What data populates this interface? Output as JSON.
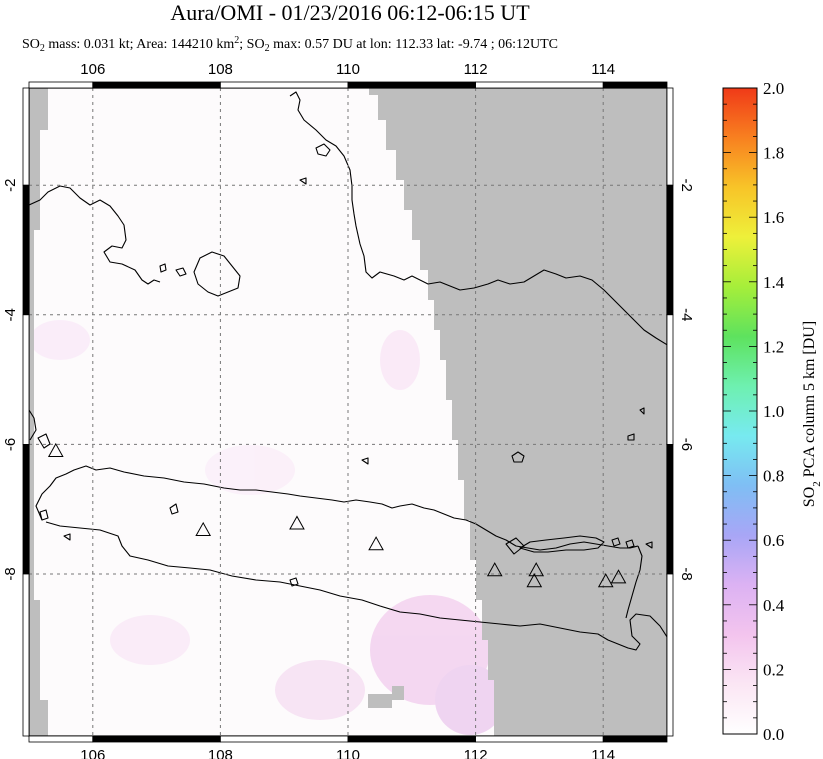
{
  "title": "Aura/OMI - 01/23/2016 06:12-06:15 UT",
  "subtitle": {
    "part1": "SO",
    "sub1": "2",
    "part2": " mass: 0.031 kt; Area: 144210 km",
    "sup1": "2",
    "part3": "; SO",
    "sub2": "2",
    "part4": " max: 0.57 DU at lon: 112.33 lat: -9.74 ; 06:12UTC"
  },
  "map": {
    "lon_range": [
      105,
      115
    ],
    "lat_range": [
      -10.5,
      -0.5
    ],
    "x_ticks": [
      106,
      108,
      110,
      112,
      114
    ],
    "x_tick_labels": [
      "106",
      "108",
      "110",
      "112",
      "114"
    ],
    "y_ticks": [
      -2,
      -4,
      -6,
      -8
    ],
    "y_tick_labels": [
      "-2",
      "-4",
      "-6",
      "-8"
    ],
    "no_data_color": "#bebebe",
    "land_outline_color": "#000000",
    "grid": "dotted",
    "volcanoes": [
      {
        "lon": 105.42,
        "lat": -6.1
      },
      {
        "lon": 107.73,
        "lat": -7.32
      },
      {
        "lon": 109.2,
        "lat": -7.22
      },
      {
        "lon": 110.44,
        "lat": -7.54
      },
      {
        "lon": 112.3,
        "lat": -7.94
      },
      {
        "lon": 112.95,
        "lat": -7.94
      },
      {
        "lon": 112.92,
        "lat": -8.11
      },
      {
        "lon": 114.04,
        "lat": -8.11
      },
      {
        "lon": 114.24,
        "lat": -8.05
      }
    ]
  },
  "colorbar": {
    "title": "SO2 PCA column 5 km [DU]",
    "min": 0.0,
    "max": 2.0,
    "tick_labels": [
      "0.0",
      "0.2",
      "0.4",
      "0.6",
      "0.8",
      "1.0",
      "1.2",
      "1.4",
      "1.6",
      "1.8",
      "2.0"
    ],
    "colors": [
      "#ffffff",
      "#fbe6f4",
      "#f3c4ee",
      "#dcb2f3",
      "#a8a6f6",
      "#7fbef4",
      "#77eaf0",
      "#6ef0b0",
      "#5ee25e",
      "#a6ee3a",
      "#eef03a",
      "#f8c428",
      "#f88020",
      "#f03a18"
    ]
  }
}
